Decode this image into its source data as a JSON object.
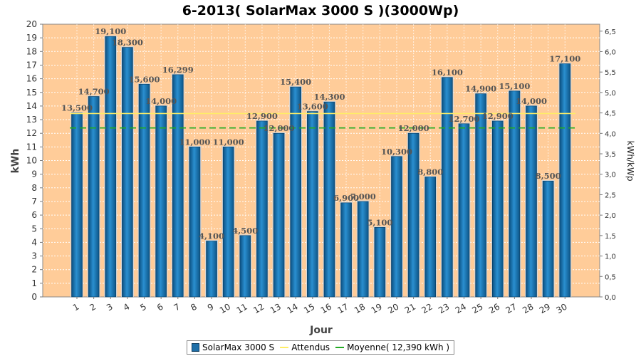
{
  "chart_data": {
    "type": "bar",
    "title": "6-2013( SolarMax 3000 S )(3000Wp)",
    "xlabel": "Jour",
    "ylabel": "kWh",
    "ylabel_right": "kWh/kWp",
    "categories": [
      "1",
      "2",
      "3",
      "4",
      "5",
      "6",
      "7",
      "8",
      "9",
      "10",
      "11",
      "12",
      "13",
      "14",
      "15",
      "16",
      "17",
      "18",
      "19",
      "20",
      "21",
      "22",
      "23",
      "24",
      "25",
      "26",
      "27",
      "28",
      "29",
      "30"
    ],
    "series": [
      {
        "name": "SolarMax 3000 S",
        "values": [
          13.5,
          14.7,
          19.1,
          18.3,
          15.6,
          14.0,
          16.299,
          11.0,
          4.1,
          11.0,
          4.5,
          12.9,
          12.0,
          15.4,
          13.6,
          14.3,
          6.9,
          7.0,
          5.1,
          10.3,
          12.0,
          8.8,
          16.1,
          12.7,
          14.9,
          12.9,
          15.1,
          14.0,
          8.5,
          17.1
        ],
        "labels": [
          "13,500",
          "14,700",
          "19,100",
          "18,300",
          "15,600",
          "14,000",
          "16,299",
          "11,000",
          "4,100",
          "11,000",
          "4,500",
          "12,900",
          "12,000",
          "15,400",
          "13,600",
          "14,300",
          "6,900",
          "7,000",
          "5,100",
          "10,300",
          "12,000",
          "8,800",
          "16,100",
          "12,700",
          "14,900",
          "12,900",
          "15,100",
          "14,000",
          "8,500",
          "17,100"
        ],
        "color": "#1f6fa8"
      }
    ],
    "reference_lines": [
      {
        "name": "Attendus",
        "value": 13.45,
        "color": "#ffee66",
        "style": "solid"
      },
      {
        "name": "Moyenne( 12,390 kWh )",
        "value": 12.39,
        "color": "#22aa22",
        "style": "dashed"
      }
    ],
    "ylim": [
      0,
      20
    ],
    "yticks": [
      "0",
      "1",
      "2",
      "3",
      "4",
      "5",
      "6",
      "7",
      "8",
      "9",
      "10",
      "11",
      "12",
      "13",
      "14",
      "15",
      "16",
      "17",
      "18",
      "19",
      "20"
    ],
    "ylim_right": [
      0,
      6.67
    ],
    "yticks_right": [
      "0,0",
      "0,5",
      "1,0",
      "1,5",
      "2,0",
      "2,5",
      "3,0",
      "3,5",
      "4,0",
      "4,5",
      "5,0",
      "5,5",
      "6,0",
      "6,5"
    ],
    "grid": true,
    "plot_background": "#ffcc99",
    "legend_position": "bottom"
  }
}
